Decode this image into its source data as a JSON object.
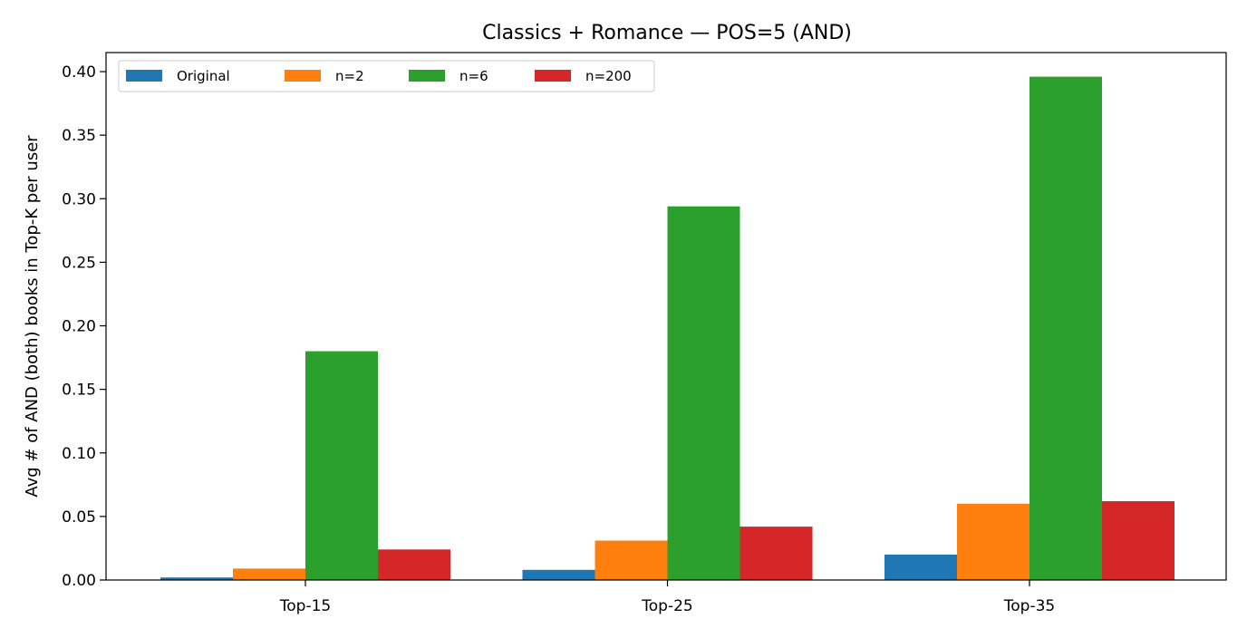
{
  "chart_data": {
    "type": "bar",
    "title": "Classics + Romance — POS=5 (AND)",
    "xlabel": "",
    "ylabel": "Avg # of AND (both) books in Top-K per user",
    "categories": [
      "Top-15",
      "Top-25",
      "Top-35"
    ],
    "series": [
      {
        "name": "Original",
        "color": "#1f77b4",
        "values": [
          0.002,
          0.008,
          0.02
        ]
      },
      {
        "name": "n=2",
        "color": "#ff7f0e",
        "values": [
          0.009,
          0.031,
          0.06
        ]
      },
      {
        "name": "n=6",
        "color": "#2ca02c",
        "values": [
          0.18,
          0.294,
          0.396
        ]
      },
      {
        "name": "n=200",
        "color": "#d62728",
        "values": [
          0.024,
          0.042,
          0.062
        ]
      }
    ],
    "ylim": [
      0,
      0.415
    ],
    "yticks": [
      "0.00",
      "0.05",
      "0.10",
      "0.15",
      "0.20",
      "0.25",
      "0.30",
      "0.35",
      "0.40"
    ],
    "grid": false,
    "legend_position": "top-left"
  }
}
